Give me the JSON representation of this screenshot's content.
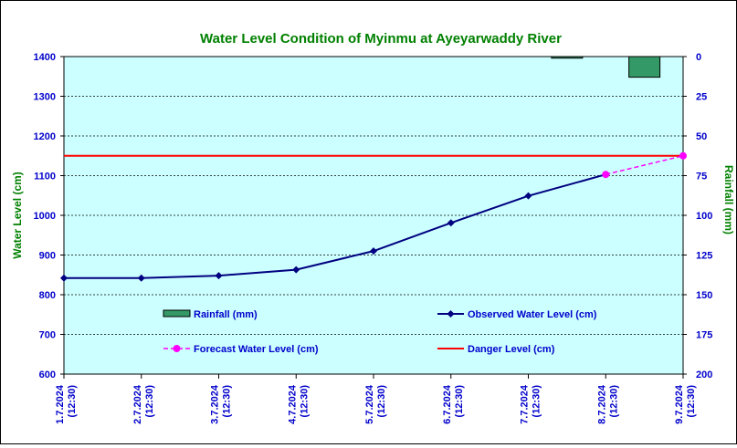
{
  "chart_data": {
    "type": "line",
    "title": "Water Level Condition of Myinmu at Ayeyarwaddy River",
    "ylabel_left": "Water Level (cm)",
    "ylabel_right": "Rainfall (mm)",
    "ylim_left": [
      600,
      1400
    ],
    "ylim_right": [
      0,
      200
    ],
    "yticks_left": [
      600,
      700,
      800,
      900,
      1000,
      1100,
      1200,
      1300,
      1400
    ],
    "yticks_right": [
      0,
      25,
      50,
      75,
      100,
      125,
      150,
      175,
      200
    ],
    "right_axis_inverted": true,
    "grid": "horizontal dashed",
    "categories": [
      [
        "1.7.2024",
        "(12:30)"
      ],
      [
        "2.7.2024",
        "(12:30)"
      ],
      [
        "3.7.2024",
        "(12:30)"
      ],
      [
        "4.7.2024",
        "(12:30)"
      ],
      [
        "5.7.2024",
        "(12:30)"
      ],
      [
        "6.7.2024",
        "(12:30)"
      ],
      [
        "7.7.2024",
        "(12:30)"
      ],
      [
        "8.7.2024",
        "(12:30)"
      ],
      [
        "9.7.2024",
        "(12:30)"
      ]
    ],
    "series": [
      {
        "name": "Rainfall (mm)",
        "type": "bar",
        "axis": "right",
        "color": "#339966",
        "values": [
          0,
          0,
          0,
          0,
          0,
          0,
          1,
          13,
          null
        ]
      },
      {
        "name": "Observed Water Level (cm)",
        "type": "line",
        "axis": "left",
        "color": "#000080",
        "marker": "diamond",
        "values": [
          842,
          842,
          848,
          863,
          910,
          981,
          1049,
          1103,
          null
        ]
      },
      {
        "name": "Forecast Water Level (cm)",
        "type": "line",
        "axis": "left",
        "color": "#ff00ff",
        "dashed": true,
        "marker": "circle",
        "values": [
          null,
          null,
          null,
          null,
          null,
          null,
          null,
          1103,
          1150
        ]
      },
      {
        "name": "Danger Level (cm)",
        "type": "line",
        "axis": "left",
        "color": "#ff0000",
        "value": 1150
      }
    ],
    "legend": [
      {
        "label": "Rainfall (mm)",
        "key": "bar"
      },
      {
        "label": "Observed Water Level (cm)",
        "key": "line-diamond"
      },
      {
        "label": "Forecast Water Level (cm)",
        "key": "dash-circle"
      },
      {
        "label": "Danger Level (cm)",
        "key": "line"
      }
    ],
    "legend_position": "inside-lower-area",
    "colors": {
      "plot_background": "#ccffff",
      "title": "#008000",
      "axis_labels_left": "#0000cc",
      "axis_title": "#008000"
    }
  }
}
